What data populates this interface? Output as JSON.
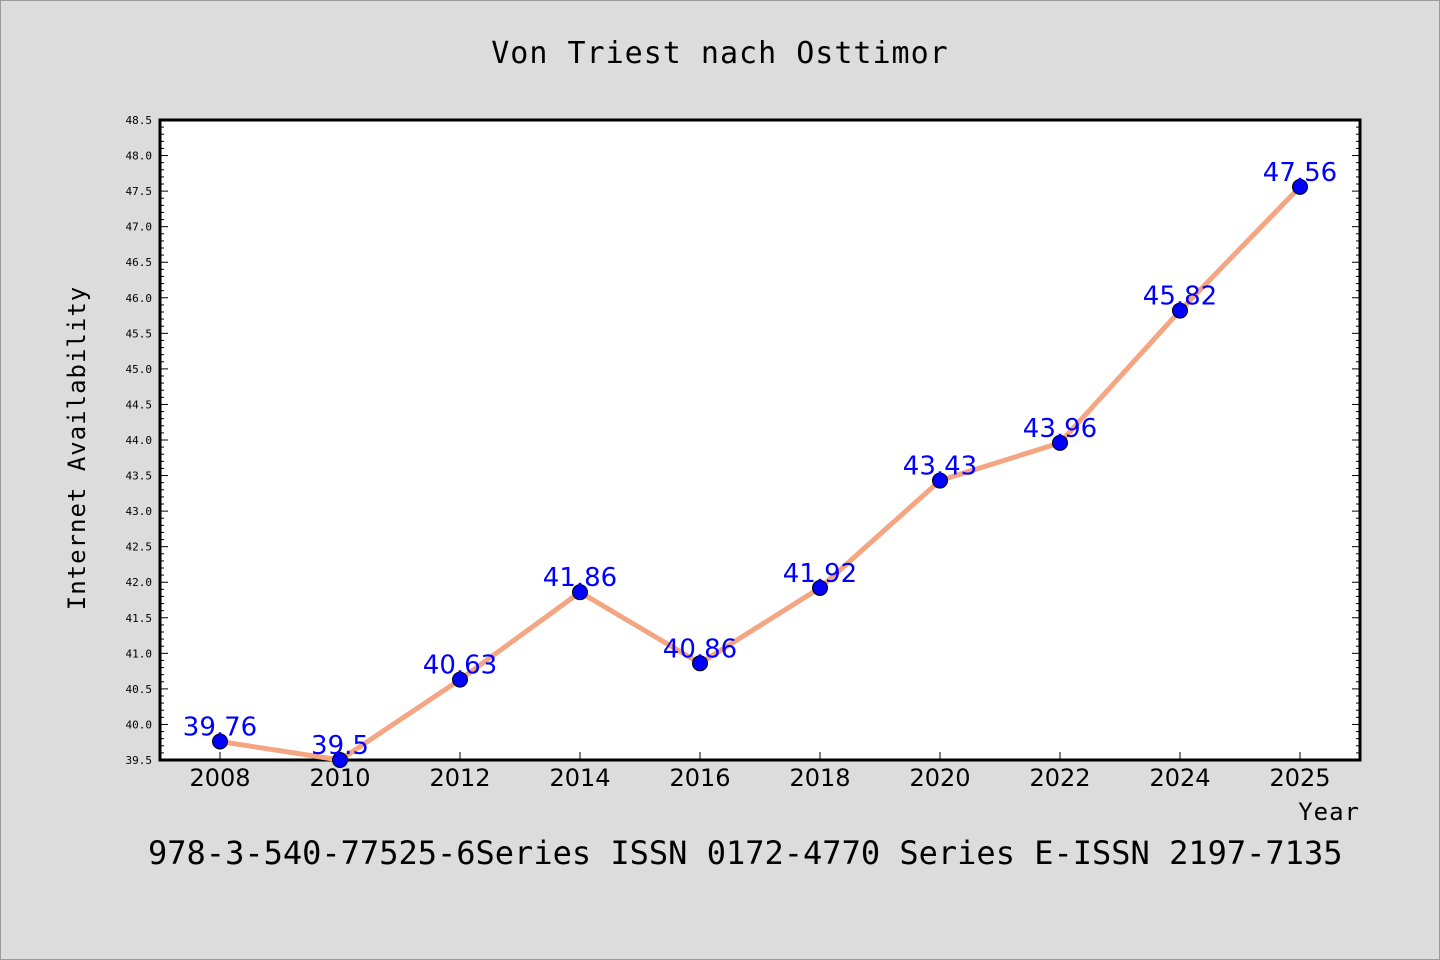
{
  "chart_data": {
    "type": "line",
    "title": "Von Triest nach Osttimor",
    "xlabel": "Year",
    "ylabel": "Internet Availability",
    "x": [
      "2008",
      "2010",
      "2012",
      "2014",
      "2016",
      "2018",
      "2020",
      "2022",
      "2024",
      "2025"
    ],
    "series": [
      {
        "values": [
          39.76,
          39.5,
          40.63,
          41.86,
          40.86,
          41.92,
          43.43,
          43.96,
          45.82,
          47.56
        ]
      }
    ],
    "data_labels": [
      "39.76",
      "39.5",
      "40.63",
      "41.86",
      "40.86",
      "41.92",
      "43.43",
      "43.96",
      "45.82",
      "47.56"
    ],
    "ylim": [
      39.5,
      48.5
    ],
    "yticks": [
      "39.5",
      "40.0",
      "40.5",
      "41.0",
      "41.5",
      "42.0",
      "42.5",
      "43.0",
      "43.5",
      "44.0",
      "44.5",
      "45.0",
      "45.5",
      "46.0",
      "46.5",
      "47.0",
      "47.5",
      "48.0",
      "48.5"
    ],
    "grid": false,
    "line_color": "#f4a582",
    "marker_color": "#0000ff",
    "label_color": "#0000ff",
    "background_color": "#dcdcdc",
    "plot_background": "#ffffff"
  },
  "footer": "978-3-540-77525-6Series ISSN 0172-4770 Series E-ISSN 2197-7135"
}
